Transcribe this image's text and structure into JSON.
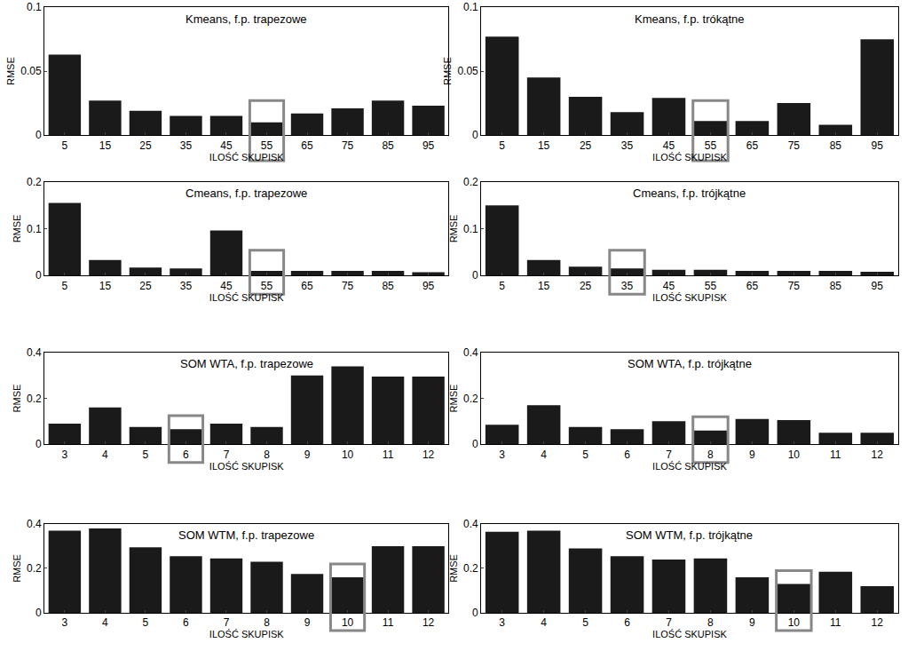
{
  "chart_data": [
    {
      "type": "bar",
      "title": "Kmeans, f.p. trapezowe",
      "x_label": "ILOŚĆ SKUPISK",
      "y_label": "RMSE",
      "categories": [
        "5",
        "15",
        "25",
        "35",
        "45",
        "55",
        "65",
        "75",
        "85",
        "95"
      ],
      "values": [
        0.063,
        0.027,
        0.019,
        0.015,
        0.015,
        0.01,
        0.017,
        0.021,
        0.027,
        0.023
      ],
      "color": "#1a1a1a",
      "ylim": [
        0,
        0.1
      ],
      "yticks": [
        0,
        0.05,
        0.1
      ],
      "selected": "55"
    },
    {
      "type": "bar",
      "title": "Kmeans, f.p. trókątne",
      "x_label": "ILOŚĆ SKUPISK",
      "y_label": "RMSE",
      "categories": [
        "5",
        "15",
        "25",
        "35",
        "45",
        "55",
        "65",
        "75",
        "85",
        "95"
      ],
      "values": [
        0.077,
        0.045,
        0.03,
        0.018,
        0.029,
        0.011,
        0.011,
        0.025,
        0.008,
        0.075
      ],
      "color": "#1a1a1a",
      "ylim": [
        0,
        0.1
      ],
      "yticks": [
        0,
        0.05,
        0.1
      ],
      "selected": "55"
    },
    {
      "type": "bar",
      "title": "Cmeans, f.p. trapezowe",
      "x_label": "ILOŚĆ SKUPISK",
      "y_label": "RMSE",
      "categories": [
        "5",
        "15",
        "25",
        "35",
        "45",
        "55",
        "65",
        "75",
        "85",
        "95"
      ],
      "values": [
        0.155,
        0.033,
        0.017,
        0.015,
        0.096,
        0.01,
        0.01,
        0.01,
        0.01,
        0.007
      ],
      "color": "#1a1a1a",
      "ylim": [
        0,
        0.2
      ],
      "yticks": [
        0,
        0.1,
        0.2
      ],
      "selected": "55"
    },
    {
      "type": "bar",
      "title": "Cmeans, f.p. trójkątne",
      "x_label": "ILOŚĆ SKUPISK",
      "y_label": "RMSE",
      "categories": [
        "5",
        "15",
        "25",
        "35",
        "45",
        "55",
        "65",
        "75",
        "85",
        "95"
      ],
      "values": [
        0.15,
        0.033,
        0.019,
        0.015,
        0.012,
        0.012,
        0.01,
        0.01,
        0.01,
        0.008
      ],
      "color": "#1a1a1a",
      "ylim": [
        0,
        0.2
      ],
      "yticks": [
        0,
        0.1,
        0.2
      ],
      "selected": "35"
    },
    {
      "type": "bar",
      "title": "SOM WTA, f.p. trapezowe",
      "x_label": "ILOŚĆ SKUPISK",
      "y_label": "RMSE",
      "categories": [
        "3",
        "4",
        "5",
        "6",
        "7",
        "8",
        "9",
        "10",
        "11",
        "12"
      ],
      "values": [
        0.09,
        0.16,
        0.075,
        0.065,
        0.09,
        0.075,
        0.3,
        0.34,
        0.295,
        0.295
      ],
      "color": "#1a1a1a",
      "ylim": [
        0,
        0.4
      ],
      "yticks": [
        0,
        0.2,
        0.4
      ],
      "selected": "6"
    },
    {
      "type": "bar",
      "title": "SOM WTA, f.p. trójkątne",
      "x_label": "ILOŚĆ SKUPISK",
      "y_label": "RMSE",
      "categories": [
        "3",
        "4",
        "5",
        "6",
        "7",
        "8",
        "9",
        "10",
        "11",
        "12"
      ],
      "values": [
        0.085,
        0.17,
        0.075,
        0.065,
        0.1,
        0.06,
        0.11,
        0.105,
        0.05,
        0.05
      ],
      "color": "#1a1a1a",
      "ylim": [
        0,
        0.4
      ],
      "yticks": [
        0,
        0.2,
        0.4
      ],
      "selected": "8"
    },
    {
      "type": "bar",
      "title": "SOM WTM, f.p. trapezowe",
      "x_label": "ILOŚĆ SKUPISK",
      "y_label": "RMSE",
      "categories": [
        "3",
        "4",
        "5",
        "6",
        "7",
        "8",
        "9",
        "10",
        "11",
        "12"
      ],
      "values": [
        0.37,
        0.38,
        0.295,
        0.255,
        0.245,
        0.23,
        0.175,
        0.16,
        0.3,
        0.3
      ],
      "color": "#1a1a1a",
      "ylim": [
        0,
        0.4
      ],
      "yticks": [
        0,
        0.2,
        0.4
      ],
      "selected": "10"
    },
    {
      "type": "bar",
      "title": "SOM WTM, f.p. trójkątne",
      "x_label": "ILOŚĆ SKUPISK",
      "y_label": "RMSE",
      "categories": [
        "3",
        "4",
        "5",
        "6",
        "7",
        "8",
        "9",
        "10",
        "11",
        "12"
      ],
      "values": [
        0.365,
        0.37,
        0.29,
        0.255,
        0.24,
        0.245,
        0.16,
        0.13,
        0.185,
        0.12
      ],
      "color": "#1a1a1a",
      "ylim": [
        0,
        0.4
      ],
      "yticks": [
        0,
        0.2,
        0.4
      ],
      "selected": "10"
    }
  ]
}
